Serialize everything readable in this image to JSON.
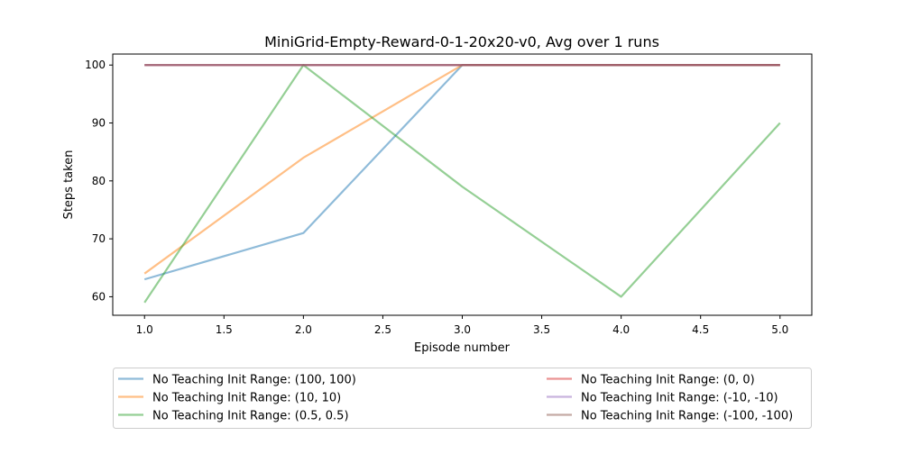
{
  "chart_data": {
    "type": "line",
    "title": "MiniGrid-Empty-Reward-0-1-20x20-v0, Avg over 1 runs",
    "xlabel": "Episode number",
    "ylabel": "Steps taken",
    "xlim": [
      0.8,
      5.2
    ],
    "ylim": [
      56.8,
      101.9
    ],
    "xticks": [
      1.0,
      1.5,
      2.0,
      2.5,
      3.0,
      3.5,
      4.0,
      4.5,
      5.0
    ],
    "xtick_labels": [
      "1.0",
      "1.5",
      "2.0",
      "2.5",
      "3.0",
      "3.5",
      "4.0",
      "4.5",
      "5.0"
    ],
    "yticks": [
      60,
      70,
      80,
      90,
      100
    ],
    "ytick_labels": [
      "60",
      "70",
      "80",
      "90",
      "100"
    ],
    "x": [
      1,
      2,
      3,
      4,
      5
    ],
    "grid": false,
    "legend_position": "below-plot",
    "series": [
      {
        "name": "No Teaching Init Range: (100, 100)",
        "color": "#1f77b4",
        "values": [
          63,
          71,
          100,
          100,
          100
        ]
      },
      {
        "name": "No Teaching Init Range: (10, 10)",
        "color": "#ff7f0e",
        "values": [
          64,
          84,
          100,
          100,
          100
        ]
      },
      {
        "name": "No Teaching Init Range: (0.5, 0.5)",
        "color": "#2ca02c",
        "values": [
          59,
          100,
          79,
          60,
          90
        ]
      },
      {
        "name": "No Teaching Init Range: (0, 0)",
        "color": "#d62728",
        "values": [
          100,
          100,
          100,
          100,
          100
        ]
      },
      {
        "name": "No Teaching Init Range: (-10, -10)",
        "color": "#9467bd",
        "values": [
          100,
          100,
          100,
          100,
          100
        ]
      },
      {
        "name": "No Teaching Init Range: (-100, -100)",
        "color": "#8c564b",
        "values": [
          100,
          100,
          100,
          100,
          100
        ]
      }
    ]
  }
}
